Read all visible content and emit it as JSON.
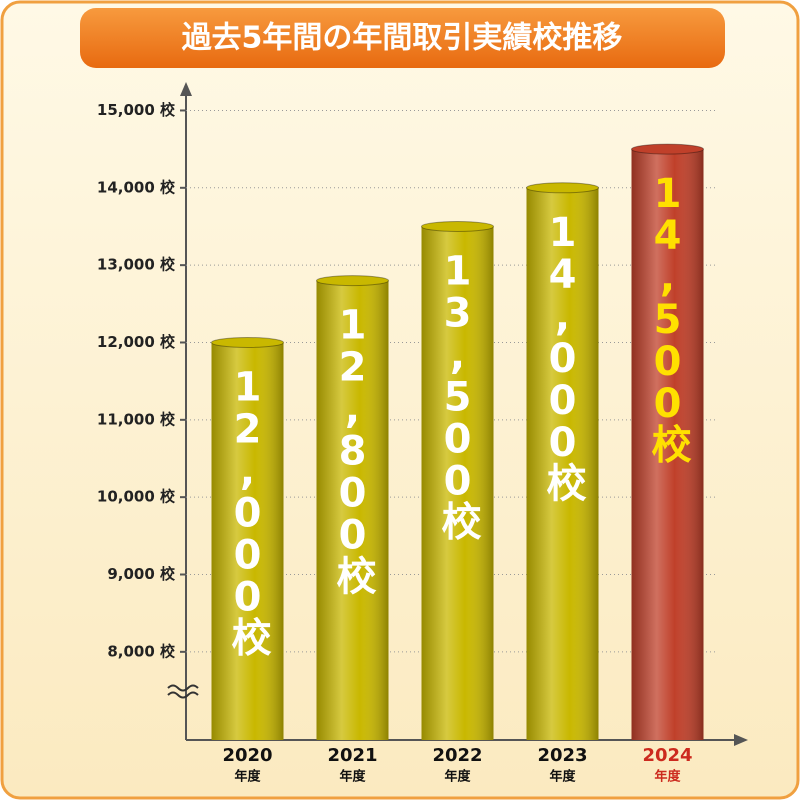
{
  "chart_data": {
    "type": "bar",
    "title": "過去5年間の年間取引実績校推移",
    "categories": [
      "2020",
      "2021",
      "2022",
      "2023",
      "2024"
    ],
    "category_suffix": "年度",
    "values": [
      12000,
      12800,
      13500,
      14000,
      14500
    ],
    "value_labels": [
      "12,000校",
      "12,800校",
      "13,500校",
      "14,000校",
      "14,500校"
    ],
    "colors": [
      "#c9b800",
      "#c9b800",
      "#c9b800",
      "#c9b800",
      "#c0402a"
    ],
    "label_colors": [
      "#ffffff",
      "#ffffff",
      "#ffffff",
      "#ffffff",
      "#ffe000"
    ],
    "category_colors": [
      "#111111",
      "#111111",
      "#111111",
      "#111111",
      "#cc2a1e"
    ],
    "ylim": [
      6860,
      15200
    ],
    "yticks": [
      {
        "value": 8000,
        "label": "8,000 校"
      },
      {
        "value": 9000,
        "label": "9,000 校"
      },
      {
        "value": 10000,
        "label": "10,000 校"
      },
      {
        "value": 11000,
        "label": "11,000 校"
      },
      {
        "value": 12000,
        "label": "12,000 校"
      },
      {
        "value": 13000,
        "label": "13,000 校"
      },
      {
        "value": 14000,
        "label": "14,000 校"
      },
      {
        "value": 15000,
        "label": "15,000 校"
      }
    ],
    "grid": true,
    "axis_break": true
  }
}
